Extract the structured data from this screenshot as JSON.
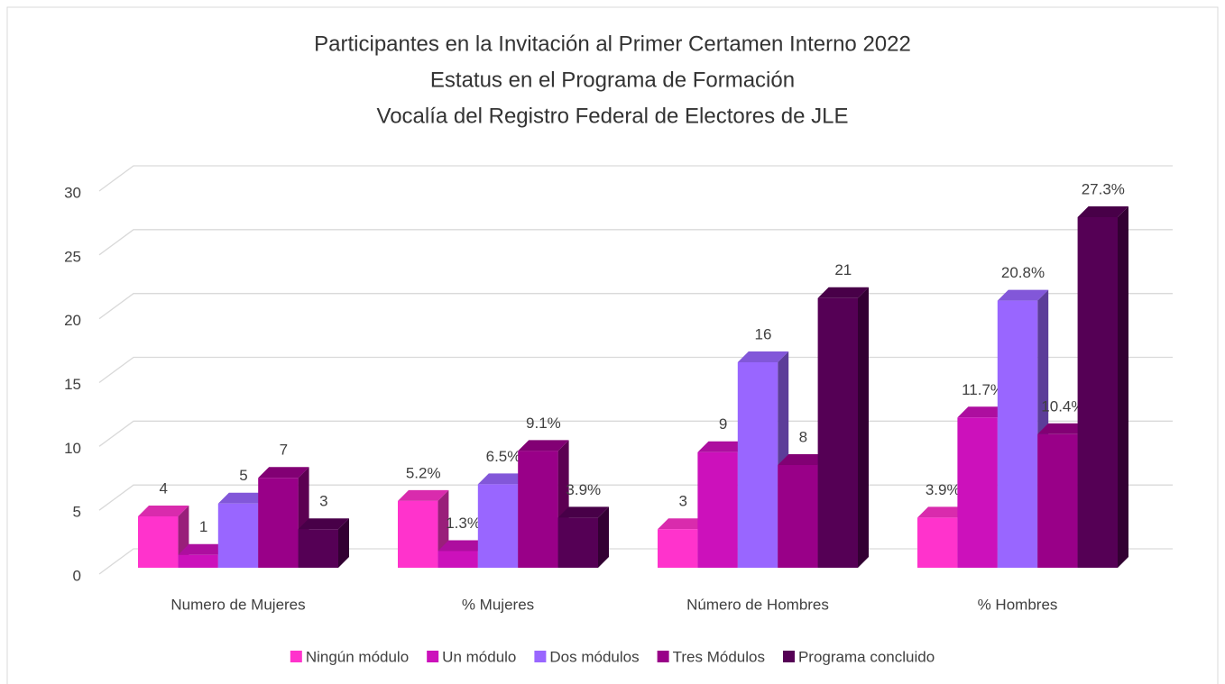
{
  "chart_data": {
    "type": "bar3d",
    "title": [
      "Participantes en la Invitación al Primer Certamen Interno 2022",
      "Estatus en el Programa de Formación",
      "Vocalía del Registro Federal de Electores de JLE"
    ],
    "categories": [
      "Numero de Mujeres",
      "% Mujeres",
      "Número de Hombres",
      "% Hombres"
    ],
    "series": [
      {
        "name": "Ningún módulo",
        "color": "#ff33cc",
        "values": [
          4,
          5.2,
          3,
          3.9
        ],
        "value_labels": [
          "4",
          "5.2%",
          "3",
          "3.9%"
        ]
      },
      {
        "name": "Un módulo",
        "color": "#cc11bb",
        "values": [
          1,
          1.3,
          9,
          11.7
        ],
        "value_labels": [
          "1",
          "1.3%",
          "9",
          "11.7%"
        ]
      },
      {
        "name": "Dos módulos",
        "color": "#9966ff",
        "values": [
          5,
          6.5,
          16,
          20.8
        ],
        "value_labels": [
          "5",
          "6.5%",
          "16",
          "20.8%"
        ]
      },
      {
        "name": "Tres Módulos",
        "color": "#990088",
        "values": [
          7,
          9.1,
          8,
          10.4
        ],
        "value_labels": [
          "7",
          "9.1%",
          "8",
          "10.4%"
        ]
      },
      {
        "name": "Programa concluido",
        "color": "#550055",
        "values": [
          3,
          3.9,
          21,
          27.3
        ],
        "value_labels": [
          "3",
          "3.9%",
          "21",
          "27.3%"
        ]
      }
    ],
    "ylim": [
      0,
      30
    ],
    "yticks": [
      0,
      5,
      10,
      15,
      20,
      25,
      30
    ],
    "grid": true,
    "legend": "bottom"
  }
}
